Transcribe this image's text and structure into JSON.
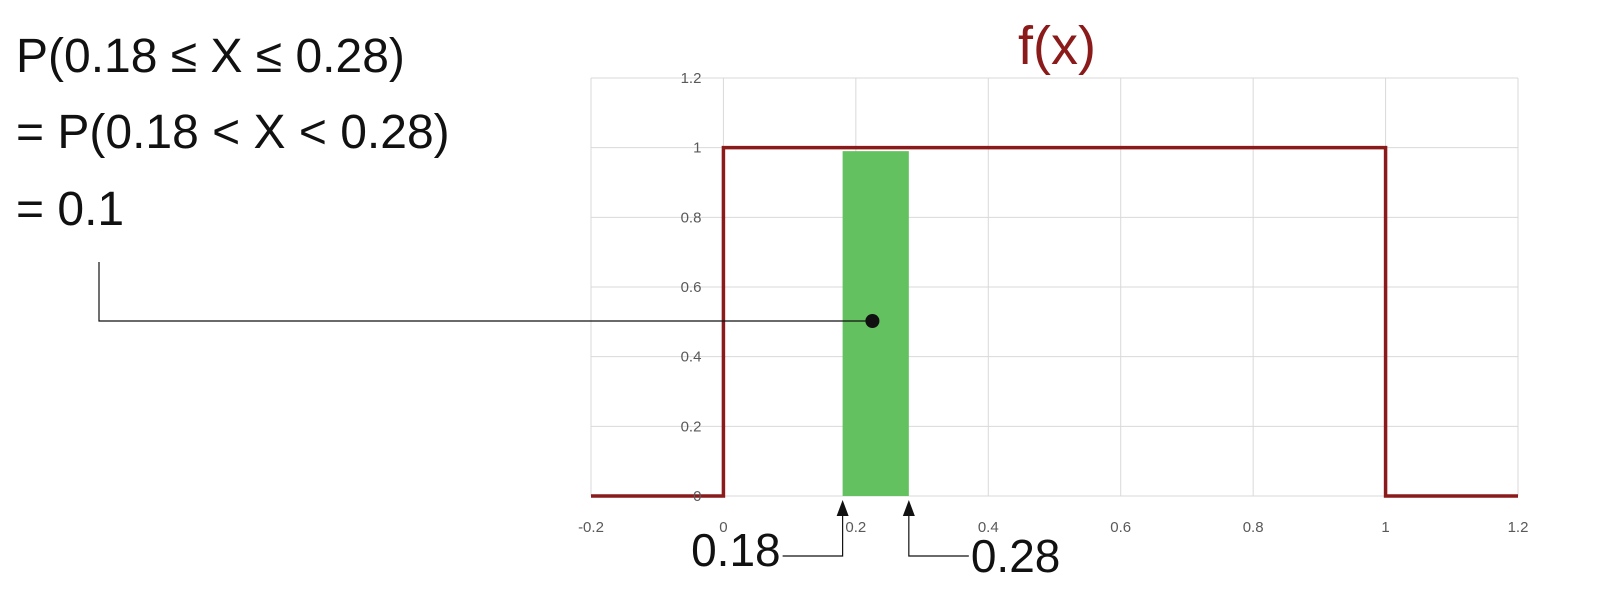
{
  "equation": {
    "lines": [
      "P(0.18 ≤ X ≤ 0.28)",
      "= P(0.18 < X < 0.28)",
      "= 0.1"
    ]
  },
  "chart_data": {
    "type": "line",
    "title": "f(x)",
    "xlabel": "",
    "ylabel": "",
    "xlim": [
      -0.2,
      1.2
    ],
    "ylim": [
      0,
      1.2
    ],
    "x_ticks": [
      -0.2,
      0,
      0.2,
      0.4,
      0.6,
      0.8,
      1,
      1.2
    ],
    "y_ticks": [
      0,
      0.2,
      0.4,
      0.6,
      0.8,
      1,
      1.2
    ],
    "x_tick_labels": [
      "-0.2",
      "0",
      "0.2",
      "0.4",
      "0.6",
      "0.8",
      "1",
      "1.2"
    ],
    "y_tick_labels": [
      "0",
      "0.2",
      "0.4",
      "0.6",
      "0.8",
      "1",
      "1.2"
    ],
    "grid": true,
    "series": [
      {
        "x": [
          -0.2,
          0,
          0,
          1,
          1,
          1.2
        ],
        "y": [
          0,
          0,
          1,
          1,
          0,
          0
        ]
      }
    ],
    "shaded_region": {
      "x_start": 0.18,
      "x_end": 0.28,
      "y_top": 0.99
    },
    "markers": [
      {
        "label": "0.18",
        "x": 0.18
      },
      {
        "label": "0.28",
        "x": 0.28
      }
    ],
    "callout_point": {
      "x": 0.225,
      "y": 0.5
    },
    "colors": {
      "line": "#8b1a1a",
      "fill": "#63c160",
      "grid": "#d9d9d9",
      "title": "#8b1a1a",
      "annotation": "#111111"
    }
  }
}
